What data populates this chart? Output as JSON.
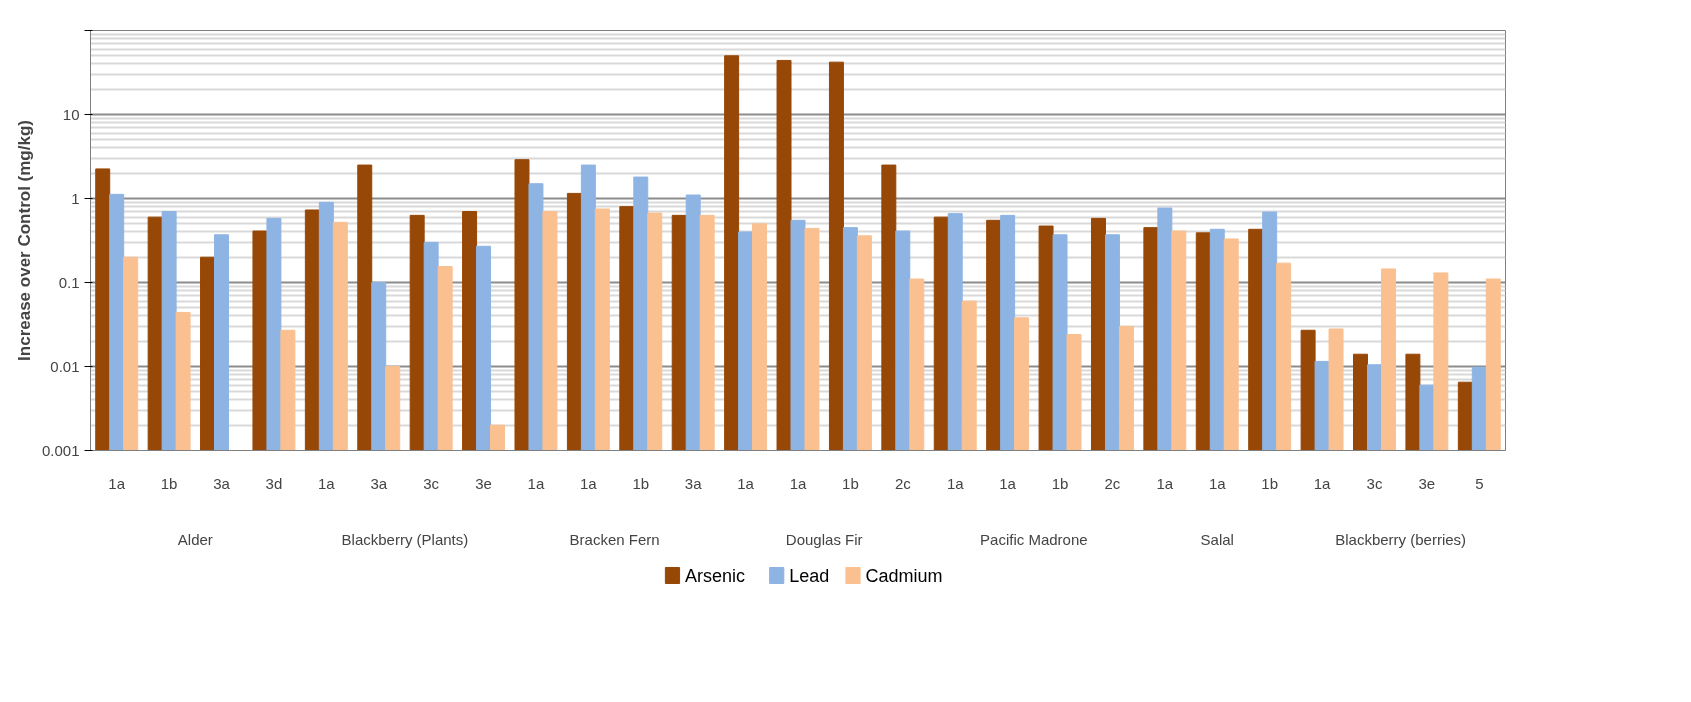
{
  "chart_data": {
    "type": "bar",
    "ylabel": "Increase over Control (mg/kg)",
    "log": true,
    "grid": "y",
    "legend": "bottom",
    "categories": [
      [
        "Alder",
        "1a"
      ],
      [
        null,
        "1b"
      ],
      [
        null,
        "3a"
      ],
      [
        null,
        "3d"
      ],
      [
        "Blackberry (Plants)",
        "1a"
      ],
      [
        null,
        "3a"
      ],
      [
        null,
        "3c"
      ],
      [
        null,
        "3e"
      ],
      [
        "Bracken Fern",
        "1a"
      ],
      [
        null,
        "1a"
      ],
      [
        null,
        "1b"
      ],
      [
        null,
        "3a"
      ],
      [
        "Douglas Fir",
        "1a"
      ],
      [
        null,
        "1a"
      ],
      [
        null,
        "1b"
      ],
      [
        null,
        "2c"
      ],
      [
        "Pacific Madrone",
        "1a"
      ],
      [
        null,
        "1a"
      ],
      [
        null,
        "1b"
      ],
      [
        null,
        "2c"
      ],
      [
        "Salal",
        "1a"
      ],
      [
        null,
        "1a"
      ],
      [
        null,
        "1b"
      ],
      [
        "Blackberry (berries)",
        "1a"
      ],
      [
        null,
        "3c"
      ],
      [
        null,
        "3e"
      ],
      [
        null,
        "5"
      ]
    ],
    "series": [
      {
        "name": "Arsenic",
        "color": "#974706",
        "values": [
          2.25,
          0.6,
          0.2,
          0.41,
          0.73,
          2.5,
          0.63,
          0.7,
          2.9,
          1.15,
          0.8,
          0.63,
          50,
          44,
          42,
          2.5,
          0.6,
          0.55,
          0.47,
          0.58,
          0.45,
          0.39,
          0.43,
          0.027,
          0.014,
          0.014,
          0.0065
        ]
      },
      {
        "name": "Lead",
        "color": "#8eb4e3",
        "values": [
          1.12,
          0.7,
          0.37,
          0.58,
          0.9,
          0.1,
          0.3,
          0.27,
          1.5,
          2.5,
          1.8,
          1.1,
          0.4,
          0.55,
          0.45,
          0.41,
          0.66,
          0.63,
          0.37,
          0.37,
          0.77,
          0.43,
          0.69,
          0.0115,
          0.0105,
          0.006,
          0.0098
        ]
      },
      {
        "name": "Cadmium",
        "color": "#fac090",
        "values": [
          0.2,
          0.044,
          null,
          0.027,
          0.52,
          0.01,
          0.155,
          0.002,
          0.7,
          0.75,
          0.67,
          0.63,
          0.5,
          0.44,
          0.36,
          0.11,
          0.06,
          0.038,
          0.024,
          0.03,
          0.41,
          0.33,
          0.17,
          0.028,
          0.145,
          0.13,
          0.11
        ]
      }
    ],
    "ylim": [
      0.001,
      100
    ],
    "yticks": [
      0.001,
      0.01,
      0.1,
      1,
      10,
      {
        "value": 100,
        "label": null
      }
    ]
  }
}
